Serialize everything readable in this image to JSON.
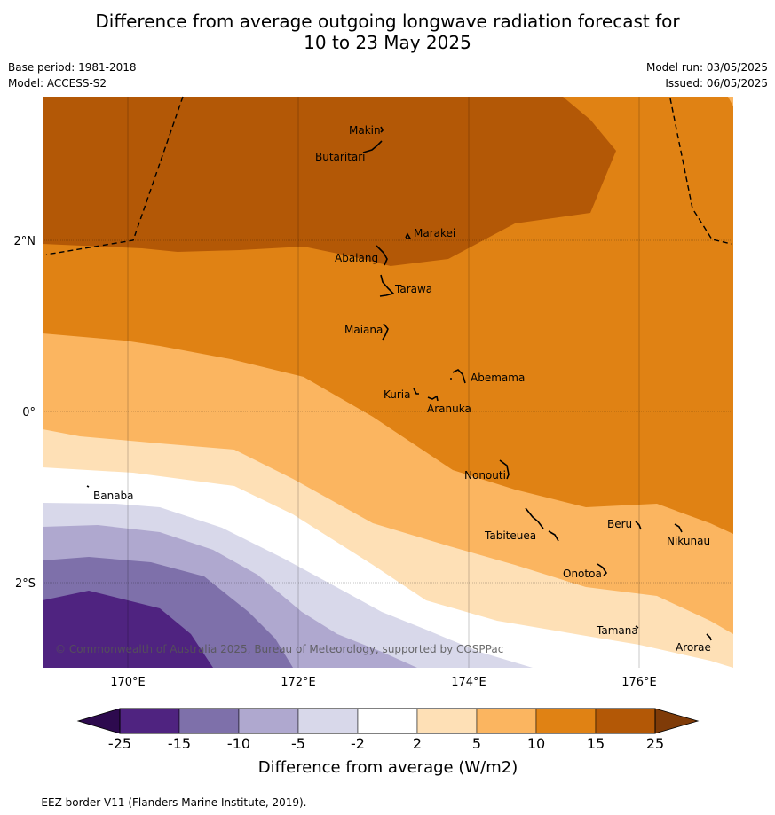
{
  "header": {
    "title_line1": "Difference from average outgoing longwave radiation forecast for",
    "title_line2": "10 to 23 May 2025",
    "base_period": "Base period: 1981-2018",
    "model": "Model: ACCESS-S2",
    "model_run": "Model run: 03/05/2025",
    "issued": "Issued: 06/05/2025"
  },
  "map": {
    "lon_ticks": [
      {
        "lon": 170,
        "label": "170°E"
      },
      {
        "lon": 172,
        "label": "172°E"
      },
      {
        "lon": 174,
        "label": "174°E"
      },
      {
        "lon": 176,
        "label": "176°E"
      }
    ],
    "lat_ticks": [
      {
        "lat": 2,
        "label": "2°N"
      },
      {
        "lat": 0,
        "label": "0°"
      },
      {
        "lat": -2,
        "label": "2°S"
      }
    ],
    "places": [
      {
        "name": "Makin"
      },
      {
        "name": "Butaritari"
      },
      {
        "name": "Marakei"
      },
      {
        "name": "Abaiang"
      },
      {
        "name": "Tarawa"
      },
      {
        "name": "Maiana"
      },
      {
        "name": "Abemama"
      },
      {
        "name": "Kuria"
      },
      {
        "name": "Aranuka"
      },
      {
        "name": "Nonouti"
      },
      {
        "name": "Banaba"
      },
      {
        "name": "Beru"
      },
      {
        "name": "Tabiteuea"
      },
      {
        "name": "Nikunau"
      },
      {
        "name": "Onotoa"
      },
      {
        "name": "Tamana"
      },
      {
        "name": "Arorae"
      }
    ],
    "copyright": "© Commonwealth of Australia 2025, Bureau of Meteorology, supported by COSPPac"
  },
  "colorbar": {
    "tick_labels": [
      "-25",
      "-15",
      "-10",
      "-5",
      "-2",
      "2",
      "5",
      "10",
      "15",
      "25"
    ],
    "colors": [
      "#4f2380",
      "#7e70aa",
      "#afa8cf",
      "#d8d8ea",
      "#ffffff",
      "#fee0b6",
      "#fbb560",
      "#e08214",
      "#b35806"
    ],
    "under_color": "#2d0a4e",
    "over_color": "#7f3b08",
    "label": "Difference from average (W/m2)"
  },
  "footer": {
    "note": "--  --  -- EEZ border V11 (Flanders Marine Institute, 2019)."
  }
}
